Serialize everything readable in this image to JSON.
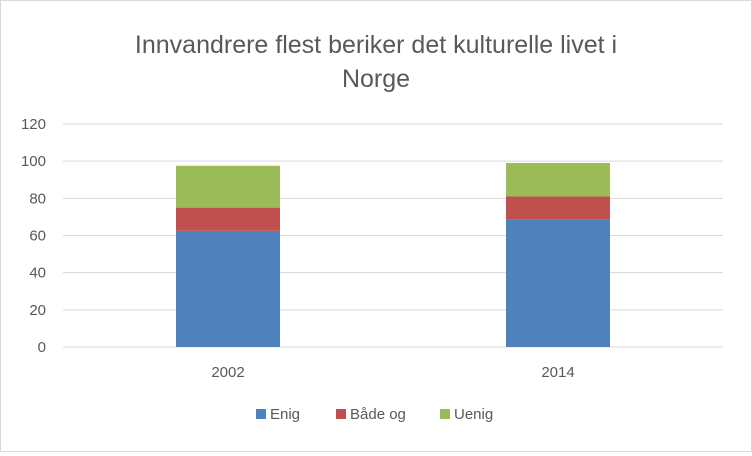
{
  "chart_data": {
    "type": "bar",
    "stacked": true,
    "title_line1": "Innvandrere flest beriker det kulturelle livet i",
    "title_line2": "Norge",
    "xlabel": "",
    "ylabel": "",
    "categories": [
      "2002",
      "2014"
    ],
    "series": [
      {
        "name": "Enig",
        "color": "#4f81bd",
        "values": [
          62.5,
          68.5
        ]
      },
      {
        "name": "Både og",
        "color": "#c0504d",
        "values": [
          12.5,
          12.5
        ]
      },
      {
        "name": "Uenig",
        "color": "#9bbb59",
        "values": [
          22.5,
          18
        ]
      }
    ],
    "ylim": [
      0,
      120
    ],
    "yticks": [
      "0",
      "20",
      "40",
      "60",
      "80",
      "100",
      "120"
    ],
    "grid": true,
    "legend_position": "bottom"
  }
}
